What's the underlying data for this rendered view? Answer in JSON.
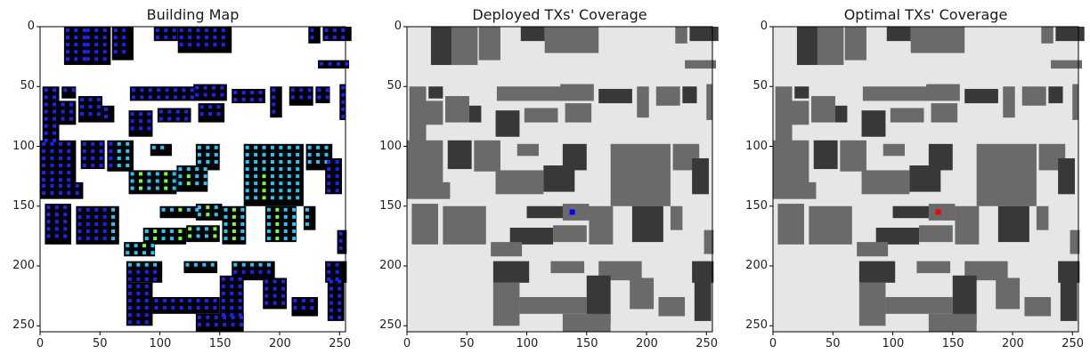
{
  "figure": {
    "panels": [
      {
        "title": "Building Map"
      },
      {
        "title": "Deployed TXs' Coverage"
      },
      {
        "title": "Optimal TXs' Coverage"
      }
    ]
  },
  "chart_data": [
    {
      "type": "heatmap",
      "title": "Building Map",
      "xlabel": "",
      "ylabel": "",
      "xlim": [
        0,
        255
      ],
      "ylim": [
        255,
        0
      ],
      "xticks": [
        "0",
        "50",
        "100",
        "150",
        "200",
        "250"
      ],
      "yticks": [
        "0",
        "50",
        "100",
        "150",
        "200",
        "250"
      ],
      "colors": {
        "background": "#ffffff",
        "building": "#000000",
        "points_low": "#1a22ff",
        "points_mid": "#19c9ff",
        "points_high": "#7cff2a"
      }
    },
    {
      "type": "heatmap",
      "title": "Deployed TXs' Coverage",
      "xlabel": "",
      "ylabel": "",
      "xlim": [
        0,
        255
      ],
      "ylim": [
        255,
        0
      ],
      "xticks": [
        "0",
        "50",
        "100",
        "150",
        "200",
        "250"
      ],
      "yticks": [
        "0",
        "50",
        "100",
        "150",
        "200",
        "250"
      ],
      "tx_marker": {
        "x": 138,
        "y": 155,
        "color": "#0000ff"
      }
    },
    {
      "type": "heatmap",
      "title": "Optimal TXs' Coverage",
      "xlabel": "",
      "ylabel": "",
      "xlim": [
        0,
        255
      ],
      "ylim": [
        255,
        0
      ],
      "xticks": [
        "0",
        "50",
        "100",
        "150",
        "200",
        "250"
      ],
      "yticks": [
        "0",
        "50",
        "100",
        "150",
        "200",
        "250"
      ],
      "tx_marker": {
        "x": 138,
        "y": 155,
        "color": "#ff0000"
      }
    }
  ]
}
